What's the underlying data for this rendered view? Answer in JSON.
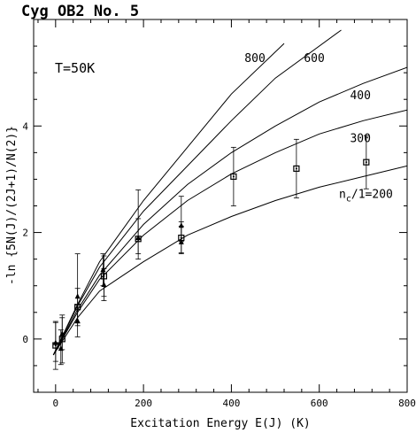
{
  "chart_data": {
    "type": "scatter",
    "title": "Cyg OB2 No. 5",
    "annotation": "T=50K",
    "xlabel": "Excitation Energy E(J) (K)",
    "ylabel": "-ln {5N(J)/(2J+1)/N(2)}",
    "xlim": [
      -50,
      800
    ],
    "ylim": [
      -1,
      6
    ],
    "x_ticks": [
      0,
      200,
      400,
      600,
      800
    ],
    "y_ticks": [
      0,
      2,
      4
    ],
    "grid": false,
    "model_curves": [
      {
        "label": "800",
        "x": [
          -5,
          50,
          100,
          200,
          300,
          400,
          520
        ],
        "y": [
          -0.3,
          0.65,
          1.45,
          2.6,
          3.6,
          4.6,
          5.55
        ]
      },
      {
        "label": "600",
        "x": [
          -5,
          50,
          100,
          200,
          300,
          400,
          500,
          650
        ],
        "y": [
          -0.3,
          0.62,
          1.35,
          2.4,
          3.25,
          4.1,
          4.9,
          5.8
        ]
      },
      {
        "label": "400",
        "x": [
          -5,
          50,
          100,
          200,
          300,
          400,
          500,
          600,
          700,
          800
        ],
        "y": [
          -0.3,
          0.55,
          1.2,
          2.15,
          2.9,
          3.5,
          4.0,
          4.45,
          4.8,
          5.1
        ]
      },
      {
        "label": "300",
        "x": [
          -5,
          50,
          100,
          200,
          300,
          400,
          500,
          600,
          700,
          800
        ],
        "y": [
          -0.3,
          0.5,
          1.12,
          1.95,
          2.6,
          3.1,
          3.5,
          3.85,
          4.1,
          4.3
        ]
      },
      {
        "label": "n_c/1=200",
        "x": [
          -5,
          50,
          100,
          200,
          300,
          400,
          500,
          600,
          700,
          800
        ],
        "y": [
          -0.3,
          0.4,
          0.9,
          1.45,
          1.95,
          2.3,
          2.6,
          2.85,
          3.05,
          3.25
        ]
      }
    ],
    "curve_labels": [
      {
        "text": "800",
        "x": 430,
        "y": 5.2
      },
      {
        "text": "600",
        "x": 565,
        "y": 5.2
      },
      {
        "text": "400",
        "x": 670,
        "y": 4.5
      },
      {
        "text": "300",
        "x": 670,
        "y": 3.7
      }
    ],
    "nc_label": {
      "main": "n",
      "sub": "c",
      "rest": "/1=200",
      "x": 645,
      "y": 2.65
    },
    "square_points": [
      {
        "x": 0,
        "y": -0.12,
        "err": 0.45
      },
      {
        "x": 15,
        "y": 0.0,
        "err": 0.45
      },
      {
        "x": 50,
        "y": 0.6,
        "err": 0.35
      },
      {
        "x": 110,
        "y": 1.18,
        "err": 0.38
      },
      {
        "x": 188,
        "y": 1.88,
        "err": 0.38
      },
      {
        "x": 286,
        "y": 1.9,
        "err": 0.3
      },
      {
        "x": 405,
        "y": 3.05,
        "err": 0.55
      },
      {
        "x": 548,
        "y": 3.2,
        "err": 0.55
      },
      {
        "x": 707,
        "y": 3.32,
        "err": 0.5
      }
    ],
    "triangle_points": [
      {
        "x": 0,
        "y": -0.07,
        "up": 0.38,
        "down": 0.35
      },
      {
        "x": 12,
        "y": -0.18,
        "up": 0.35,
        "down": 0.3
      },
      {
        "x": 15,
        "y": 0.1,
        "up": 0.3,
        "down": 0.3
      },
      {
        "x": 50,
        "y": 0.8,
        "up": 0.8,
        "down": 0.5
      },
      {
        "x": 50,
        "y": 0.34,
        "up": 0.3,
        "down": 0.3
      },
      {
        "x": 108,
        "y": 1.3,
        "up": 0.3,
        "down": 0.3
      },
      {
        "x": 110,
        "y": 1.02,
        "up": 0.3,
        "down": 0.3
      },
      {
        "x": 188,
        "y": 1.9,
        "up": 0.9,
        "down": 0.3
      },
      {
        "x": 286,
        "y": 2.13,
        "up": 0.55,
        "down": 0.3
      },
      {
        "x": 286,
        "y": 1.82,
        "up": 0.3,
        "down": 0.2
      }
    ]
  }
}
